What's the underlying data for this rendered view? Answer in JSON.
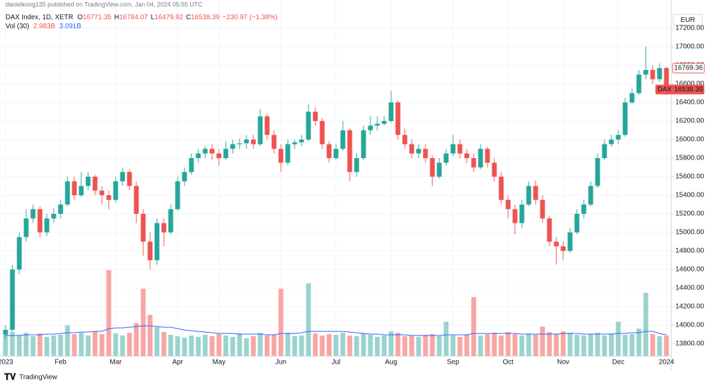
{
  "chart_data": {
    "type": "candlestick",
    "attribution": "danielkong135 published on TradingView.com, Jan 04, 2024 05:55 UTC",
    "title": "DAX Index, 1D, XETR",
    "ohlc_labels": [
      "O",
      "H",
      "L",
      "C"
    ],
    "change_label": "−230.97 (−1.38%)",
    "volume_title": "Vol (30)",
    "currency": "EUR",
    "symbol": "DAX",
    "brand": "TradingView",
    "up_color": "#26a69a",
    "down_color": "#ef5350",
    "grid": true,
    "ylim": [
      13667,
      17370
    ],
    "yticks": [
      {
        "value": 13800,
        "label": "13800.00"
      },
      {
        "value": 14000,
        "label": "14000.00"
      },
      {
        "value": 14200,
        "label": "14200.00"
      },
      {
        "value": 14400,
        "label": "14400.00"
      },
      {
        "value": 14600,
        "label": "14600.00"
      },
      {
        "value": 14800,
        "label": "14800.00"
      },
      {
        "value": 15000,
        "label": "15000.00"
      },
      {
        "value": 15200,
        "label": "15200.00"
      },
      {
        "value": 15400,
        "label": "15400.00"
      },
      {
        "value": 15600,
        "label": "15600.00"
      },
      {
        "value": 15800,
        "label": "15800.00"
      },
      {
        "value": 16000,
        "label": "16000.00"
      },
      {
        "value": 16200,
        "label": "16200.00"
      },
      {
        "value": 16400,
        "label": "16400.00"
      },
      {
        "value": 16600,
        "label": "16600.00"
      },
      {
        "value": 16800,
        "label": "16800.00"
      },
      {
        "value": 17000,
        "label": "17000.00"
      },
      {
        "value": 17200,
        "label": "17200.00"
      }
    ],
    "categories": [
      "2023",
      null,
      null,
      null,
      null,
      null,
      null,
      null,
      "Feb",
      null,
      null,
      null,
      null,
      null,
      null,
      null,
      "Mar",
      null,
      null,
      null,
      null,
      null,
      null,
      null,
      null,
      "Apr",
      null,
      null,
      null,
      null,
      null,
      "May",
      null,
      null,
      null,
      null,
      null,
      null,
      null,
      null,
      "Jun",
      null,
      null,
      null,
      null,
      null,
      null,
      null,
      "Jul",
      null,
      null,
      null,
      null,
      null,
      null,
      null,
      "Aug",
      null,
      null,
      null,
      null,
      null,
      null,
      null,
      null,
      "Sep",
      null,
      null,
      null,
      null,
      null,
      null,
      null,
      "Oct",
      null,
      null,
      null,
      null,
      null,
      null,
      null,
      "Nov",
      null,
      null,
      null,
      null,
      null,
      null,
      null,
      "Dec",
      null,
      null,
      null,
      null,
      null,
      null,
      "2024"
    ],
    "candles": [
      [
        13900,
        14000,
        13850,
        13950
      ],
      [
        13950,
        14650,
        13930,
        14600
      ],
      [
        14600,
        15000,
        14550,
        14950
      ],
      [
        14950,
        15250,
        14900,
        15150
      ],
      [
        15150,
        15300,
        15100,
        15250
      ],
      [
        15250,
        15280,
        14950,
        15000
      ],
      [
        15000,
        15200,
        14960,
        15150
      ],
      [
        15150,
        15260,
        15100,
        15200
      ],
      [
        15200,
        15350,
        15150,
        15300
      ],
      [
        15300,
        15600,
        15280,
        15550
      ],
      [
        15550,
        15600,
        15350,
        15400
      ],
      [
        15400,
        15650,
        15380,
        15500
      ],
      [
        15500,
        15650,
        15450,
        15600
      ],
      [
        15600,
        15620,
        15400,
        15450
      ],
      [
        15450,
        15500,
        15300,
        15400
      ],
      [
        15400,
        15450,
        15250,
        15350
      ],
      [
        15350,
        15600,
        15320,
        15550
      ],
      [
        15550,
        15700,
        15500,
        15650
      ],
      [
        15650,
        15680,
        15450,
        15500
      ],
      [
        15500,
        15550,
        15100,
        15200
      ],
      [
        15200,
        15250,
        14750,
        14900
      ],
      [
        14900,
        15000,
        14600,
        14700
      ],
      [
        14700,
        15150,
        14650,
        15100
      ],
      [
        15100,
        15150,
        14850,
        15000
      ],
      [
        15000,
        15300,
        14980,
        15250
      ],
      [
        15250,
        15600,
        15230,
        15550
      ],
      [
        15550,
        15700,
        15500,
        15650
      ],
      [
        15650,
        15850,
        15620,
        15800
      ],
      [
        15800,
        15900,
        15750,
        15850
      ],
      [
        15850,
        15930,
        15800,
        15900
      ],
      [
        15900,
        15950,
        15780,
        15850
      ],
      [
        15850,
        15900,
        15720,
        15800
      ],
      [
        15800,
        15980,
        15780,
        15900
      ],
      [
        15900,
        16000,
        15850,
        15950
      ],
      [
        15950,
        16010,
        15900,
        15960
      ],
      [
        15960,
        16050,
        15900,
        16000
      ],
      [
        16000,
        16050,
        15900,
        15950
      ],
      [
        15950,
        16330,
        15930,
        16250
      ],
      [
        16250,
        16280,
        16000,
        16050
      ],
      [
        16050,
        16100,
        15850,
        15900
      ],
      [
        15900,
        15950,
        15650,
        15750
      ],
      [
        15750,
        16000,
        15720,
        15950
      ],
      [
        15950,
        16000,
        15900,
        15970
      ],
      [
        15970,
        16050,
        15930,
        16000
      ],
      [
        16000,
        16380,
        15980,
        16300
      ],
      [
        16300,
        16350,
        16150,
        16200
      ],
      [
        16200,
        16230,
        15900,
        15950
      ],
      [
        15950,
        15980,
        15750,
        15800
      ],
      [
        15800,
        15950,
        15780,
        15900
      ],
      [
        15900,
        16200,
        15880,
        16100
      ],
      [
        16100,
        16120,
        15550,
        15650
      ],
      [
        15650,
        15850,
        15600,
        15800
      ],
      [
        15800,
        16150,
        15780,
        16100
      ],
      [
        16100,
        16250,
        16050,
        16150
      ],
      [
        16150,
        16250,
        16100,
        16170
      ],
      [
        16170,
        16250,
        16150,
        16200
      ],
      [
        16200,
        16520,
        16180,
        16400
      ],
      [
        16400,
        16420,
        16000,
        16050
      ],
      [
        16050,
        16120,
        15900,
        15950
      ],
      [
        15950,
        16000,
        15800,
        15850
      ],
      [
        15850,
        15950,
        15800,
        15900
      ],
      [
        15900,
        15950,
        15750,
        15800
      ],
      [
        15800,
        15830,
        15500,
        15600
      ],
      [
        15600,
        15800,
        15580,
        15750
      ],
      [
        15750,
        15900,
        15720,
        15850
      ],
      [
        15850,
        16050,
        15820,
        15950
      ],
      [
        15950,
        16000,
        15800,
        15850
      ],
      [
        15850,
        15900,
        15750,
        15800
      ],
      [
        15800,
        15850,
        15650,
        15700
      ],
      [
        15700,
        15950,
        15680,
        15900
      ],
      [
        15900,
        15920,
        15700,
        15750
      ],
      [
        15750,
        15800,
        15550,
        15600
      ],
      [
        15600,
        15650,
        15300,
        15350
      ],
      [
        15350,
        15400,
        15150,
        15250
      ],
      [
        15250,
        15300,
        14980,
        15100
      ],
      [
        15100,
        15350,
        15050,
        15300
      ],
      [
        15300,
        15550,
        15280,
        15500
      ],
      [
        15500,
        15560,
        15300,
        15350
      ],
      [
        15350,
        15400,
        15100,
        15150
      ],
      [
        15150,
        15180,
        14850,
        14900
      ],
      [
        14900,
        14950,
        14650,
        14850
      ],
      [
        14850,
        14900,
        14700,
        14800
      ],
      [
        14800,
        15050,
        14780,
        15000
      ],
      [
        15000,
        15250,
        14980,
        15200
      ],
      [
        15200,
        15350,
        15150,
        15300
      ],
      [
        15300,
        15550,
        15280,
        15500
      ],
      [
        15500,
        15850,
        15480,
        15800
      ],
      [
        15800,
        16000,
        15780,
        15950
      ],
      [
        15950,
        16050,
        15920,
        16000
      ],
      [
        16000,
        16100,
        15950,
        16050
      ],
      [
        16050,
        16450,
        16030,
        16400
      ],
      [
        16400,
        16550,
        16380,
        16500
      ],
      [
        16500,
        16750,
        16480,
        16700
      ],
      [
        16700,
        17000,
        16650,
        16750
      ],
      [
        16750,
        16800,
        16600,
        16650
      ],
      [
        16650,
        16820,
        16620,
        16769.36
      ],
      [
        16771.35,
        16784.07,
        16479.92,
        16538.39
      ]
    ],
    "volume": {
      "name": "Vol",
      "label": "2.983B",
      "up_color": "#9ad3cd",
      "down_color": "#f7a6a4",
      "values": [
        3.2,
        3.5,
        3.0,
        3.4,
        2.9,
        3.3,
        2.8,
        3.0,
        3.1,
        4.5,
        3.2,
        3.4,
        3.0,
        3.6,
        3.2,
        12.5,
        3.3,
        3.0,
        3.4,
        4.8,
        9.8,
        6.0,
        4.2,
        3.5,
        3.1,
        2.9,
        2.7,
        3.0,
        2.8,
        3.1,
        2.9,
        3.2,
        3.0,
        2.8,
        3.3,
        2.6,
        2.9,
        3.4,
        3.0,
        3.1,
        9.8,
        3.4,
        2.9,
        3.0,
        10.6,
        3.3,
        3.0,
        3.2,
        3.1,
        3.4,
        3.0,
        2.9,
        3.3,
        3.1,
        2.8,
        3.0,
        3.6,
        3.4,
        2.9,
        3.0,
        2.8,
        3.1,
        3.2,
        2.9,
        5.0,
        3.0,
        2.8,
        3.1,
        8.6,
        3.0,
        3.2,
        3.4,
        3.0,
        3.5,
        3.2,
        3.0,
        3.3,
        3.1,
        4.3,
        3.5,
        3.2,
        3.6,
        3.4,
        3.1,
        3.0,
        3.2,
        3.4,
        3.0,
        3.3,
        5.0,
        3.1,
        3.2,
        4.0,
        9.2,
        3.2,
        2.9,
        2.983
      ]
    },
    "volume_ma": {
      "label": "3.091B",
      "color": "#2962ff",
      "values": [
        3.0,
        3.0,
        3.0,
        3.1,
        3.1,
        3.1,
        3.2,
        3.2,
        3.3,
        3.4,
        3.4,
        3.5,
        3.5,
        3.6,
        3.6,
        4.0,
        4.1,
        4.1,
        4.2,
        4.3,
        4.4,
        4.4,
        4.3,
        4.2,
        4.2,
        4.0,
        3.8,
        3.7,
        3.6,
        3.5,
        3.4,
        3.3,
        3.3,
        3.3,
        3.2,
        3.2,
        3.2,
        3.2,
        3.1,
        3.1,
        3.3,
        3.3,
        3.3,
        3.4,
        3.6,
        3.6,
        3.6,
        3.6,
        3.6,
        3.6,
        3.5,
        3.4,
        3.3,
        3.2,
        3.2,
        3.1,
        3.1,
        3.1,
        3.1,
        3.0,
        3.0,
        3.0,
        3.0,
        3.0,
        3.1,
        3.1,
        3.1,
        3.1,
        3.3,
        3.3,
        3.3,
        3.3,
        3.3,
        3.3,
        3.3,
        3.2,
        3.2,
        3.2,
        3.2,
        3.2,
        3.2,
        3.3,
        3.3,
        3.3,
        3.2,
        3.2,
        3.2,
        3.2,
        3.2,
        3.3,
        3.3,
        3.4,
        3.4,
        3.6,
        3.6,
        3.3,
        3.091
      ]
    }
  }
}
